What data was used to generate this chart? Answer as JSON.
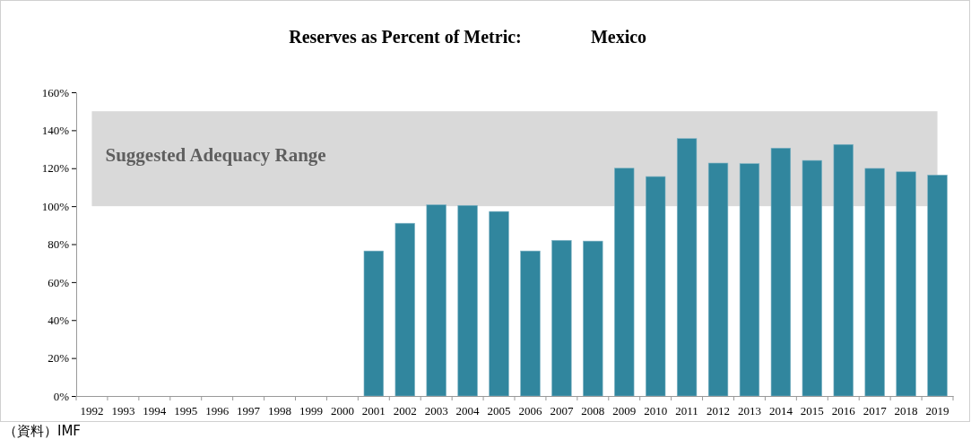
{
  "chart_data": {
    "type": "bar",
    "title": "Reserves as Percent of Metric:",
    "subtitle": "Mexico",
    "categories": [
      "1992",
      "1993",
      "1994",
      "1995",
      "1996",
      "1997",
      "1998",
      "1999",
      "2000",
      "2001",
      "2002",
      "2003",
      "2004",
      "2005",
      "2006",
      "2007",
      "2008",
      "2009",
      "2010",
      "2011",
      "2012",
      "2013",
      "2014",
      "2015",
      "2016",
      "2017",
      "2018",
      "2019"
    ],
    "values": [
      null,
      null,
      null,
      null,
      null,
      null,
      null,
      null,
      null,
      76.4,
      91,
      100.7,
      100.4,
      97.2,
      76.4,
      82,
      81.6,
      120,
      115.6,
      135.6,
      122.7,
      122.4,
      130.6,
      124.1,
      132.5,
      119.9,
      118.1,
      116.4
    ],
    "color": "#31869e",
    "ylim": [
      0,
      160
    ],
    "yticks": [
      {
        "value": 0,
        "label": "0%"
      },
      {
        "value": 20,
        "label": "20%"
      },
      {
        "value": 40,
        "label": "40%"
      },
      {
        "value": 60,
        "label": "60%"
      },
      {
        "value": 80,
        "label": "80%"
      },
      {
        "value": 100,
        "label": "100%"
      },
      {
        "value": 120,
        "label": "120%"
      },
      {
        "value": 140,
        "label": "140%"
      },
      {
        "value": 160,
        "label": "160%"
      }
    ],
    "bands": [
      {
        "axis": "y",
        "from": 100,
        "to": 150,
        "label": "Suggested Adequacy Range",
        "color": "#d9d9d9"
      }
    ],
    "grid": false,
    "annotations": [
      "（資料）IMF"
    ]
  }
}
